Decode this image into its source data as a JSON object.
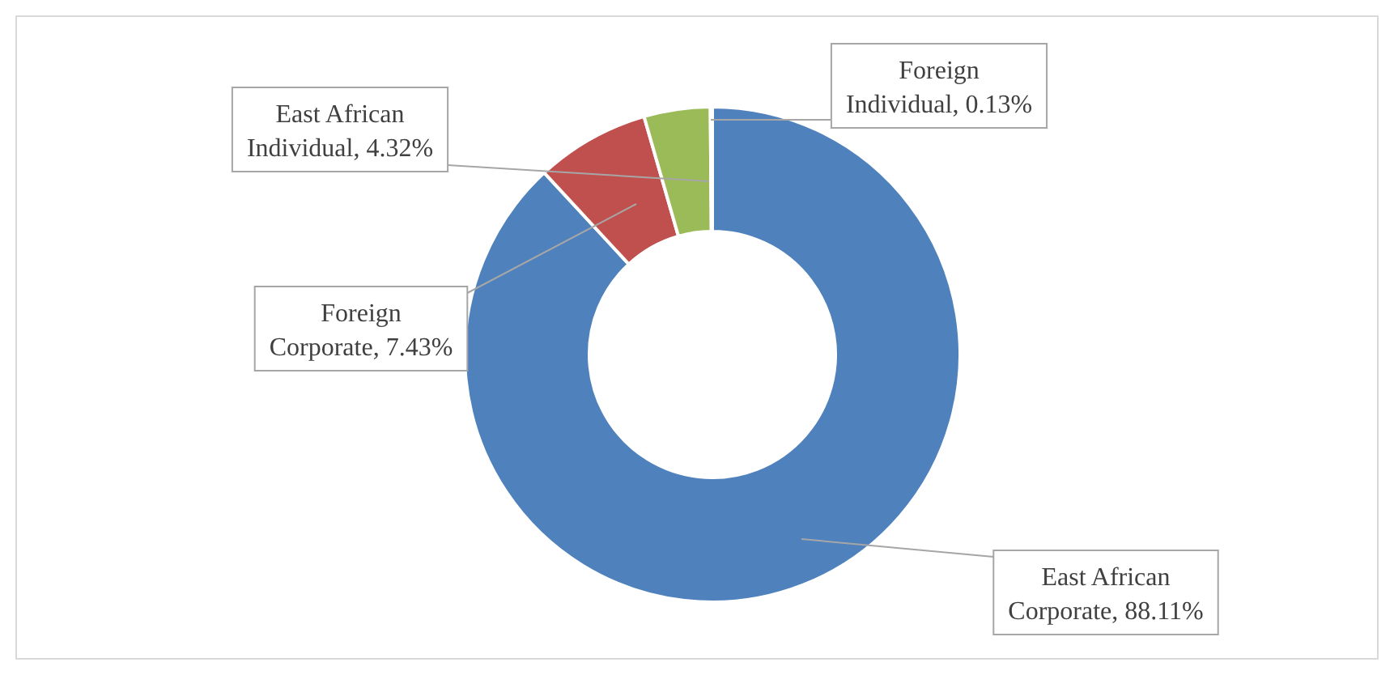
{
  "chart_data": {
    "type": "donut",
    "categories": [
      "East African Corporate",
      "Foreign Corporate",
      "East African Individual",
      "Foreign Individual"
    ],
    "values": [
      88.11,
      7.43,
      4.32,
      0.13
    ],
    "value_labels": [
      "88.11%",
      "7.43%",
      "4.32%",
      "0.13%"
    ],
    "colors": [
      "#4f81bd",
      "#c0504d",
      "#9bbb59",
      "#8064a2"
    ]
  }
}
